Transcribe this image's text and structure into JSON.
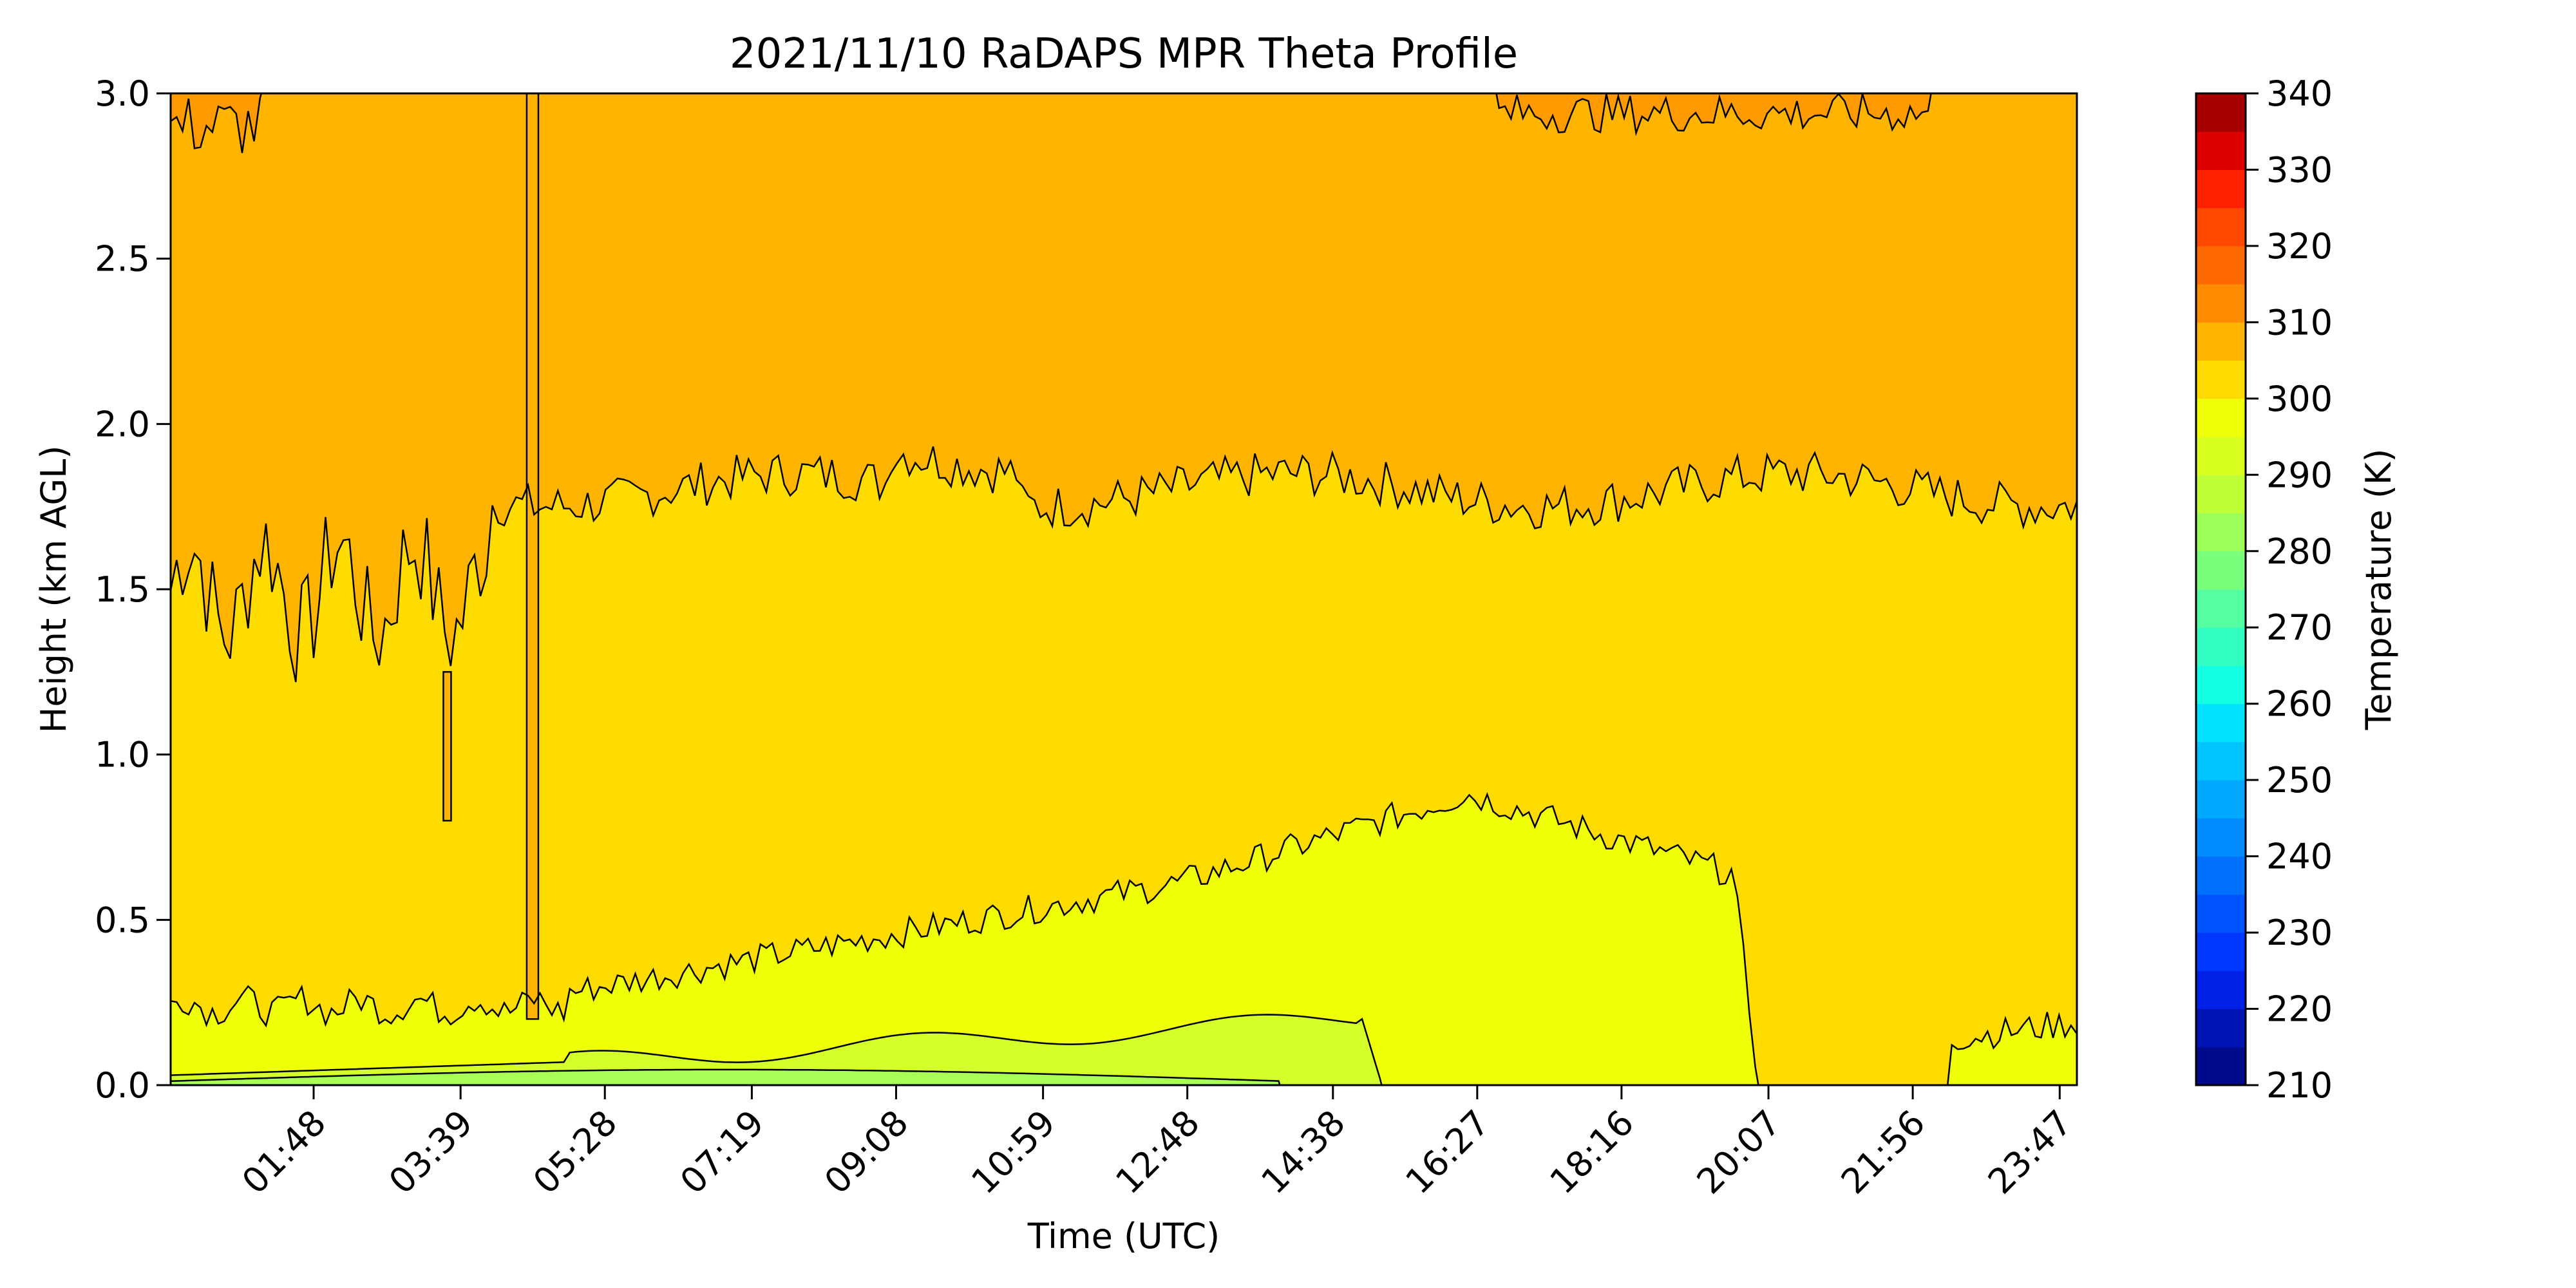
{
  "chart_data": {
    "type": "heatmap",
    "subtype": "filled-contour",
    "title": "2021/11/10 RaDAPS MPR Theta Profile",
    "xlabel": "Time (UTC)",
    "ylabel": "Height (km AGL)",
    "xlim_minutes": [
      0,
      1440
    ],
    "ylim": [
      0,
      3.0
    ],
    "x_ticks": [
      {
        "label": "01:48",
        "minute": 108
      },
      {
        "label": "03:39",
        "minute": 219
      },
      {
        "label": "05:28",
        "minute": 328
      },
      {
        "label": "07:19",
        "minute": 439
      },
      {
        "label": "09:08",
        "minute": 548
      },
      {
        "label": "10:59",
        "minute": 659
      },
      {
        "label": "12:48",
        "minute": 768
      },
      {
        "label": "14:38",
        "minute": 878
      },
      {
        "label": "16:27",
        "minute": 987
      },
      {
        "label": "18:16",
        "minute": 1096
      },
      {
        "label": "20:07",
        "minute": 1207
      },
      {
        "label": "21:56",
        "minute": 1316
      },
      {
        "label": "23:47",
        "minute": 1427
      }
    ],
    "y_ticks": [
      "0.0",
      "0.5",
      "1.0",
      "1.5",
      "2.0",
      "2.5",
      "3.0"
    ],
    "y_tick_values": [
      0,
      0.5,
      1.0,
      1.5,
      2.0,
      2.5,
      3.0
    ],
    "colorbar": {
      "label": "Temperature (K)",
      "levels": [
        210,
        215,
        220,
        225,
        230,
        235,
        240,
        245,
        250,
        255,
        260,
        265,
        270,
        275,
        280,
        285,
        290,
        295,
        300,
        305,
        310,
        315,
        320,
        325,
        330,
        335,
        340
      ],
      "colors": [
        "#000b8c",
        "#0014b5",
        "#0020e6",
        "#0038ff",
        "#0054ff",
        "#0070ff",
        "#008cff",
        "#00a8ff",
        "#00c4ff",
        "#00e0ff",
        "#14ffe2",
        "#34ffc2",
        "#55ffa1",
        "#7aff7c",
        "#9cff5a",
        "#bfff38",
        "#d9ff1e",
        "#eeff08",
        "#ffdc00",
        "#ffb400",
        "#ff8c00",
        "#ff6a00",
        "#ff4800",
        "#ff2200",
        "#dd0000",
        "#a80000"
      ],
      "tick_labels": [
        "210",
        "220",
        "230",
        "240",
        "250",
        "260",
        "270",
        "280",
        "290",
        "300",
        "310",
        "320",
        "330",
        "340"
      ]
    },
    "contour_bands": [
      {
        "range_K": "305-310",
        "color": "#ff9a00",
        "region": "top edge patches above ~2.8 km"
      },
      {
        "range_K": "300-305",
        "color": "#ffb400",
        "region": "upper layer, base ~1.4-1.9 km"
      },
      {
        "range_K": "295-300",
        "color": "#ffdc00",
        "region": "mid layer"
      },
      {
        "range_K": "290-295",
        "color": "#eeff08",
        "region": "lower layer, dome to ~0.9 km near 16:00"
      },
      {
        "range_K": "285-290",
        "color": "#d4ff2a",
        "region": "near-surface layer 00:00-15:00"
      },
      {
        "range_K": "280-285",
        "color": "#a8ff55",
        "region": "thin surface layer overnight"
      }
    ],
    "grid": false
  }
}
